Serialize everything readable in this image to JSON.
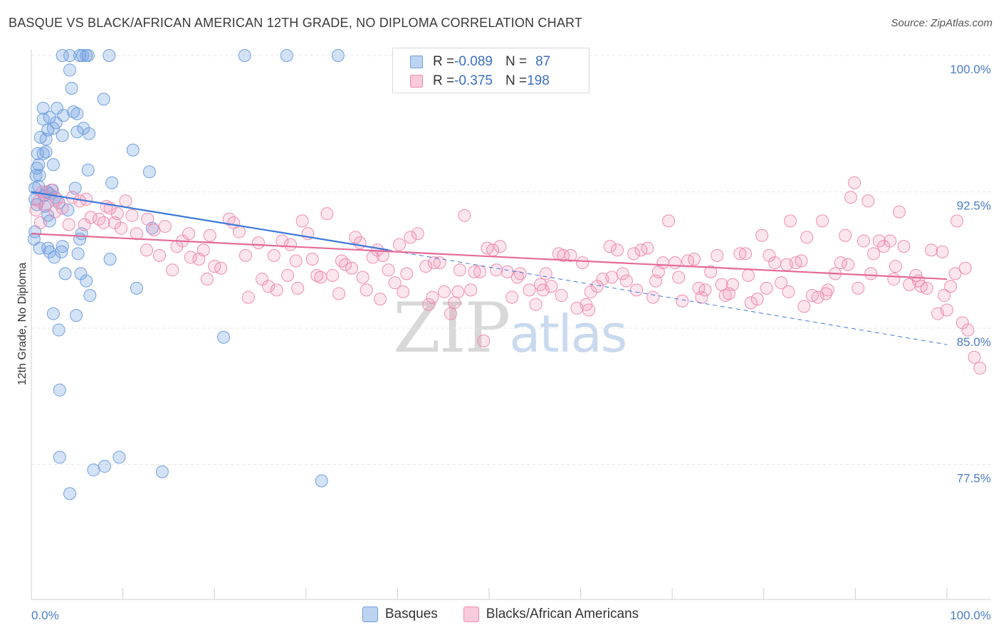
{
  "header": {
    "title": "BASQUE VS BLACK/AFRICAN AMERICAN 12TH GRADE, NO DIPLOMA CORRELATION CHART",
    "source": "Source: ZipAtlas.com"
  },
  "watermark": {
    "zip": "ZIP",
    "atlas": "atlas"
  },
  "legend": {
    "rows": [
      {
        "r_label": "R = ",
        "r_value": "-0.089",
        "n_label": "N = ",
        "n_value": "87",
        "color": "#6fa0e0"
      },
      {
        "r_label": "R = ",
        "r_value": "-0.375",
        "n_label": "N = ",
        "n_value": "198",
        "color": "#f08cb0"
      }
    ]
  },
  "bottom_legend": {
    "basques": "Basques",
    "blacks": "Blacks/African Americans"
  },
  "chart_data": {
    "type": "scatter",
    "title": "BASQUE VS BLACK/AFRICAN AMERICAN 12TH GRADE, NO DIPLOMA CORRELATION CHART",
    "ylabel": "12th Grade, No Diploma",
    "xlabel": "",
    "xlim": [
      0,
      100
    ],
    "ylim": [
      71,
      102
    ],
    "x_tick_labels": [
      "0.0%",
      "100.0%"
    ],
    "y_ticks": [
      100,
      92.5,
      85,
      77.5
    ],
    "y_tick_labels": [
      "100.0%",
      "92.5%",
      "85.0%",
      "77.5%"
    ],
    "grid": true,
    "series": [
      {
        "name": "Basques",
        "color": "#6fa0e0",
        "trend": {
          "x": [
            0,
            39,
            100
          ],
          "y": [
            92.5,
            89.3,
            84.1
          ]
        },
        "points": [
          [
            3.4,
            100
          ],
          [
            4.2,
            100
          ],
          [
            5.3,
            100
          ],
          [
            5.6,
            100
          ],
          [
            6.0,
            100
          ],
          [
            6.2,
            100
          ],
          [
            8.5,
            100
          ],
          [
            23.3,
            100
          ],
          [
            27.9,
            100
          ],
          [
            33.5,
            100
          ],
          [
            4.2,
            99.2
          ],
          [
            4.4,
            98.2
          ],
          [
            7.9,
            97.6
          ],
          [
            1.3,
            97.1
          ],
          [
            2.8,
            97.1
          ],
          [
            4.6,
            96.9
          ],
          [
            5.0,
            96.8
          ],
          [
            1.3,
            96.5
          ],
          [
            2.0,
            96.6
          ],
          [
            2.7,
            96.3
          ],
          [
            3.5,
            96.7
          ],
          [
            2.4,
            96.0
          ],
          [
            5.7,
            96.0
          ],
          [
            1.8,
            95.9
          ],
          [
            5.0,
            95.8
          ],
          [
            6.3,
            95.7
          ],
          [
            1.0,
            95.5
          ],
          [
            1.6,
            95.4
          ],
          [
            3.4,
            95.6
          ],
          [
            11.1,
            94.8
          ],
          [
            0.7,
            94.6
          ],
          [
            1.3,
            94.6
          ],
          [
            1.6,
            94.7
          ],
          [
            0.8,
            94.0
          ],
          [
            2.4,
            94.0
          ],
          [
            6.2,
            93.7
          ],
          [
            12.9,
            93.6
          ],
          [
            0.5,
            93.4
          ],
          [
            0.6,
            93.8
          ],
          [
            0.9,
            93.4
          ],
          [
            0.4,
            92.7
          ],
          [
            0.8,
            92.8
          ],
          [
            1.7,
            92.5
          ],
          [
            2.3,
            92.6
          ],
          [
            4.8,
            92.7
          ],
          [
            8.8,
            93.0
          ],
          [
            0.4,
            92.1
          ],
          [
            1.4,
            92.3
          ],
          [
            2.0,
            92.4
          ],
          [
            2.6,
            92.2
          ],
          [
            0.6,
            91.8
          ],
          [
            1.5,
            91.7
          ],
          [
            3.0,
            91.9
          ],
          [
            4.0,
            91.5
          ],
          [
            1.8,
            91.2
          ],
          [
            2.0,
            90.9
          ],
          [
            13.2,
            90.5
          ],
          [
            5.5,
            90.2
          ],
          [
            0.3,
            89.9
          ],
          [
            0.9,
            89.4
          ],
          [
            1.8,
            89.4
          ],
          [
            3.4,
            89.5
          ],
          [
            5.3,
            89.9
          ],
          [
            2.0,
            89.2
          ],
          [
            3.3,
            89.2
          ],
          [
            5.1,
            89.1
          ],
          [
            2.5,
            88.9
          ],
          [
            8.6,
            88.8
          ],
          [
            3.7,
            88.0
          ],
          [
            5.4,
            88.0
          ],
          [
            6.0,
            87.6
          ],
          [
            11.5,
            87.2
          ],
          [
            6.4,
            86.8
          ],
          [
            2.4,
            85.8
          ],
          [
            4.9,
            85.7
          ],
          [
            3.0,
            84.9
          ],
          [
            21.0,
            84.5
          ],
          [
            3.1,
            81.6
          ],
          [
            3.1,
            77.9
          ],
          [
            9.6,
            77.9
          ],
          [
            6.8,
            77.2
          ],
          [
            8.0,
            77.4
          ],
          [
            14.3,
            77.1
          ],
          [
            31.7,
            76.6
          ],
          [
            4.2,
            75.9
          ],
          [
            0.4,
            90.3
          ]
        ]
      },
      {
        "name": "Blacks/African Americans",
        "color": "#f08cb0",
        "trend": {
          "x": [
            0,
            100
          ],
          "y": [
            90.2,
            87.7
          ]
        },
        "points": [
          [
            0.5,
            91.5
          ],
          [
            0.8,
            92.0
          ],
          [
            1.2,
            92.5
          ],
          [
            1.6,
            91.8
          ],
          [
            2.2,
            92.6
          ],
          [
            2.8,
            92.1
          ],
          [
            3.4,
            91.6
          ],
          [
            4.5,
            92.2
          ],
          [
            5.3,
            92.0
          ],
          [
            6.0,
            92.1
          ],
          [
            6.5,
            91.1
          ],
          [
            7.4,
            91.0
          ],
          [
            8.2,
            91.7
          ],
          [
            8.6,
            91.6
          ],
          [
            9.4,
            91.3
          ],
          [
            10.3,
            92.0
          ],
          [
            11.0,
            91.2
          ],
          [
            9.1,
            90.8
          ],
          [
            11.5,
            90.2
          ],
          [
            12.7,
            91.0
          ],
          [
            13.4,
            90.4
          ],
          [
            14.6,
            90.6
          ],
          [
            15.9,
            89.5
          ],
          [
            16.5,
            89.8
          ],
          [
            17.2,
            90.2
          ],
          [
            18.3,
            88.8
          ],
          [
            18.8,
            89.3
          ],
          [
            20.0,
            88.4
          ],
          [
            19.5,
            90.1
          ],
          [
            19.2,
            87.7
          ],
          [
            21.6,
            91.0
          ],
          [
            22.1,
            90.8
          ],
          [
            22.7,
            90.3
          ],
          [
            23.4,
            89.0
          ],
          [
            24.8,
            89.7
          ],
          [
            25.9,
            87.3
          ],
          [
            26.5,
            89.0
          ],
          [
            28.0,
            87.9
          ],
          [
            27.4,
            89.8
          ],
          [
            28.3,
            89.6
          ],
          [
            28.9,
            88.7
          ],
          [
            29.6,
            90.9
          ],
          [
            30.2,
            90.2
          ],
          [
            30.7,
            88.8
          ],
          [
            31.6,
            87.8
          ],
          [
            32.3,
            91.3
          ],
          [
            32.9,
            87.9
          ],
          [
            33.6,
            86.9
          ],
          [
            34.3,
            88.5
          ],
          [
            35.0,
            88.3
          ],
          [
            35.4,
            90.0
          ],
          [
            35.9,
            89.7
          ],
          [
            36.6,
            87.1
          ],
          [
            37.3,
            88.9
          ],
          [
            37.8,
            89.3
          ],
          [
            38.4,
            89.0
          ],
          [
            39.0,
            88.2
          ],
          [
            39.7,
            87.5
          ],
          [
            40.2,
            89.6
          ],
          [
            41.0,
            88.0
          ],
          [
            41.4,
            90.0
          ],
          [
            42.2,
            90.2
          ],
          [
            43.1,
            88.4
          ],
          [
            43.8,
            86.7
          ],
          [
            44.0,
            88.6
          ],
          [
            44.6,
            88.6
          ],
          [
            45.1,
            87.0
          ],
          [
            45.8,
            85.8
          ],
          [
            46.2,
            86.4
          ],
          [
            46.8,
            88.2
          ],
          [
            47.3,
            91.2
          ],
          [
            48.0,
            87.1
          ],
          [
            49.0,
            88.1
          ],
          [
            49.4,
            84.3
          ],
          [
            49.8,
            89.4
          ],
          [
            50.4,
            89.3
          ],
          [
            51.2,
            89.5
          ],
          [
            52.0,
            88.1
          ],
          [
            52.5,
            86.7
          ],
          [
            53.4,
            88.0
          ],
          [
            54.4,
            87.1
          ],
          [
            55.1,
            86.3
          ],
          [
            55.6,
            87.4
          ],
          [
            56.2,
            88.0
          ],
          [
            56.8,
            87.3
          ],
          [
            57.6,
            89.1
          ],
          [
            58.1,
            89.0
          ],
          [
            58.9,
            89.0
          ],
          [
            59.6,
            86.1
          ],
          [
            60.2,
            88.6
          ],
          [
            60.6,
            86.3
          ],
          [
            61.1,
            87.0
          ],
          [
            61.8,
            87.3
          ],
          [
            62.4,
            87.7
          ],
          [
            63.2,
            89.5
          ],
          [
            64.0,
            89.3
          ],
          [
            64.6,
            88.0
          ],
          [
            65.0,
            87.6
          ],
          [
            65.8,
            89.1
          ],
          [
            66.6,
            89.3
          ],
          [
            67.3,
            89.4
          ],
          [
            67.9,
            86.7
          ],
          [
            68.5,
            88.1
          ],
          [
            69.0,
            88.6
          ],
          [
            69.6,
            90.9
          ],
          [
            70.3,
            88.6
          ],
          [
            71.1,
            86.5
          ],
          [
            71.7,
            88.7
          ],
          [
            72.4,
            88.8
          ],
          [
            72.9,
            87.2
          ],
          [
            73.6,
            87.1
          ],
          [
            74.2,
            88.1
          ],
          [
            74.9,
            89.0
          ],
          [
            75.4,
            87.4
          ],
          [
            76.2,
            86.9
          ],
          [
            76.6,
            87.4
          ],
          [
            77.4,
            89.1
          ],
          [
            78.0,
            89.1
          ],
          [
            78.6,
            86.4
          ],
          [
            79.3,
            86.6
          ],
          [
            79.8,
            90.1
          ],
          [
            80.6,
            89.0
          ],
          [
            81.2,
            88.6
          ],
          [
            81.9,
            87.5
          ],
          [
            82.5,
            88.5
          ],
          [
            82.9,
            90.9
          ],
          [
            83.5,
            88.6
          ],
          [
            84.1,
            88.7
          ],
          [
            84.7,
            90.0
          ],
          [
            85.3,
            86.8
          ],
          [
            85.9,
            86.7
          ],
          [
            86.4,
            90.9
          ],
          [
            87.0,
            87.1
          ],
          [
            87.8,
            88.0
          ],
          [
            88.4,
            88.6
          ],
          [
            88.9,
            90.1
          ],
          [
            89.5,
            92.2
          ],
          [
            89.9,
            93.0
          ],
          [
            90.3,
            87.2
          ],
          [
            90.9,
            89.8
          ],
          [
            91.4,
            92.0
          ],
          [
            92.0,
            89.1
          ],
          [
            92.6,
            89.8
          ],
          [
            93.1,
            89.5
          ],
          [
            93.8,
            89.8
          ],
          [
            94.2,
            87.7
          ],
          [
            94.8,
            91.4
          ],
          [
            95.3,
            89.5
          ],
          [
            95.9,
            87.4
          ],
          [
            96.6,
            87.9
          ],
          [
            97.2,
            87.3
          ],
          [
            97.8,
            87.2
          ],
          [
            98.3,
            89.3
          ],
          [
            99.0,
            85.8
          ],
          [
            99.5,
            89.2
          ],
          [
            100.0,
            86.0
          ],
          [
            100.4,
            87.3
          ],
          [
            101.1,
            90.9
          ],
          [
            101.7,
            85.3
          ],
          [
            102.3,
            84.9
          ],
          [
            103.0,
            83.4
          ],
          [
            103.6,
            82.8
          ],
          [
            1.0,
            90.8
          ],
          [
            2.6,
            91.4
          ],
          [
            4.1,
            90.7
          ],
          [
            5.8,
            90.7
          ],
          [
            7.9,
            90.8
          ],
          [
            9.8,
            90.5
          ],
          [
            12.6,
            89.3
          ],
          [
            14.0,
            89.0
          ],
          [
            15.4,
            88.2
          ],
          [
            17.4,
            88.9
          ],
          [
            20.7,
            88.3
          ],
          [
            23.7,
            86.7
          ],
          [
            25.2,
            87.7
          ],
          [
            26.8,
            87.1
          ],
          [
            29.1,
            87.2
          ],
          [
            31.2,
            87.9
          ],
          [
            33.9,
            88.7
          ],
          [
            36.2,
            87.8
          ],
          [
            38.1,
            86.6
          ],
          [
            40.6,
            87.0
          ],
          [
            43.4,
            86.3
          ],
          [
            46.6,
            87.0
          ],
          [
            48.4,
            88.1
          ],
          [
            50.8,
            88.2
          ],
          [
            53.1,
            87.8
          ],
          [
            55.9,
            87.1
          ],
          [
            57.9,
            86.8
          ],
          [
            60.9,
            86.0
          ],
          [
            63.4,
            87.8
          ],
          [
            66.1,
            87.1
          ],
          [
            68.2,
            87.6
          ],
          [
            70.7,
            87.8
          ],
          [
            73.2,
            86.7
          ],
          [
            75.8,
            86.8
          ],
          [
            78.3,
            87.9
          ],
          [
            80.3,
            87.2
          ],
          [
            82.7,
            87.0
          ],
          [
            84.4,
            86.2
          ],
          [
            86.8,
            86.9
          ],
          [
            89.2,
            88.5
          ],
          [
            91.7,
            88.0
          ],
          [
            94.4,
            88.4
          ],
          [
            96.9,
            87.6
          ],
          [
            99.7,
            86.8
          ],
          [
            100.9,
            88.0
          ],
          [
            102.0,
            88.3
          ]
        ]
      }
    ]
  }
}
